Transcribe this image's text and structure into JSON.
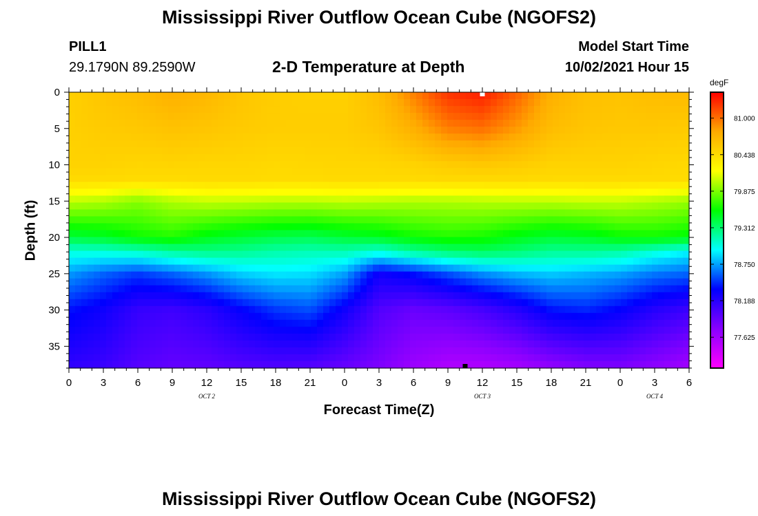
{
  "header": {
    "title": "Mississippi River Outflow Ocean Cube (NGOFS2)",
    "station": "PILL1",
    "coords": "29.1790N  89.2590W",
    "subtitle": "2-D Temperature at Depth",
    "model_start_label": "Model Start Time",
    "model_start_time": "10/02/2021 Hour 15"
  },
  "footer": {
    "title": "Mississippi River Outflow Ocean Cube (NGOFS2)"
  },
  "chart_data": {
    "type": "heatmap",
    "title": "2-D Temperature at Depth",
    "xlabel": "Forecast Time(Z)",
    "ylabel": "Depth (ft)",
    "x_hours_since_first_tick": [
      0,
      54
    ],
    "x_tick_labels": [
      "0",
      "3",
      "6",
      "9",
      "12",
      "15",
      "18",
      "21",
      "0",
      "3",
      "6",
      "9",
      "12",
      "15",
      "18",
      "21",
      "0",
      "3",
      "6"
    ],
    "date_labels": [
      {
        "label": "OCT 2",
        "tick_index": 4
      },
      {
        "label": "OCT 3",
        "tick_index": 12
      },
      {
        "label": "OCT 4",
        "tick_index": 17
      }
    ],
    "ylim": [
      0,
      38
    ],
    "y_ticks": [
      0,
      5,
      10,
      15,
      20,
      25,
      30,
      35
    ],
    "y_inverted": true,
    "colorbar": {
      "unit": "degF",
      "range": [
        77.15,
        81.4
      ],
      "ticks": [
        "81.000",
        "80.438",
        "79.875",
        "79.312",
        "78.750",
        "78.188",
        "77.625"
      ],
      "colors": [
        "#ff00ff",
        "#8800ff",
        "#0000ff",
        "#00ffff",
        "#00ff00",
        "#ffff00",
        "#ffaa00",
        "#ff0000"
      ]
    },
    "depth_profile_levels_ft": [
      0,
      5,
      10,
      12,
      15,
      20,
      22,
      25,
      30,
      38
    ],
    "columns": [
      {
        "hour": 0,
        "temps": [
          80.52,
          80.52,
          80.5,
          80.45,
          80.04,
          79.43,
          79.05,
          78.73,
          78.4,
          78.15
        ]
      },
      {
        "hour": 3,
        "temps": [
          80.6,
          80.56,
          80.5,
          80.45,
          80.0,
          79.48,
          79.06,
          78.6,
          78.3,
          78.1
        ]
      },
      {
        "hour": 6,
        "temps": [
          80.66,
          80.58,
          80.48,
          80.44,
          79.9,
          79.6,
          79.1,
          78.5,
          78.13,
          77.98
        ]
      },
      {
        "hour": 9,
        "temps": [
          80.75,
          80.62,
          80.49,
          80.44,
          80.0,
          79.65,
          79.2,
          78.6,
          78.09,
          77.92
        ]
      },
      {
        "hour": 12,
        "temps": [
          80.7,
          80.6,
          80.48,
          80.45,
          80.05,
          79.52,
          79.25,
          78.72,
          78.18,
          77.93
        ]
      },
      {
        "hour": 15,
        "temps": [
          80.6,
          80.56,
          80.48,
          80.45,
          80.04,
          79.45,
          79.23,
          78.86,
          78.35,
          77.98
        ]
      },
      {
        "hour": 18,
        "temps": [
          80.54,
          80.54,
          80.46,
          80.44,
          80.02,
          79.4,
          79.17,
          78.92,
          78.49,
          78.0
        ]
      },
      {
        "hour": 21,
        "temps": [
          80.52,
          80.54,
          80.47,
          80.44,
          80.02,
          79.38,
          79.14,
          78.9,
          78.55,
          77.98
        ]
      },
      {
        "hour": 24,
        "temps": [
          80.52,
          80.54,
          80.48,
          80.45,
          80.04,
          79.45,
          79.15,
          78.75,
          78.3,
          77.9
        ]
      },
      {
        "hour": 27,
        "temps": [
          80.66,
          80.6,
          80.48,
          80.45,
          80.02,
          79.5,
          79.05,
          78.3,
          78.0,
          77.8
        ]
      },
      {
        "hour": 30,
        "temps": [
          80.95,
          80.75,
          80.5,
          80.45,
          80.0,
          79.6,
          79.2,
          78.4,
          77.9,
          77.65
        ]
      },
      {
        "hour": 33,
        "temps": [
          81.22,
          80.95,
          80.55,
          80.46,
          80.0,
          79.65,
          79.3,
          78.55,
          77.95,
          77.55
        ]
      },
      {
        "hour": 36,
        "temps": [
          81.3,
          81.0,
          80.58,
          80.46,
          80.02,
          79.62,
          79.35,
          78.7,
          78.05,
          77.55
        ]
      },
      {
        "hour": 39,
        "temps": [
          81.05,
          80.85,
          80.55,
          80.46,
          80.03,
          79.52,
          79.3,
          78.8,
          78.2,
          77.6
        ]
      },
      {
        "hour": 42,
        "temps": [
          80.75,
          80.66,
          80.5,
          80.45,
          80.03,
          79.45,
          79.22,
          78.85,
          78.4,
          77.7
        ]
      },
      {
        "hour": 45,
        "temps": [
          80.64,
          80.6,
          80.5,
          80.45,
          80.05,
          79.48,
          79.22,
          78.8,
          78.45,
          77.78
        ]
      },
      {
        "hour": 48,
        "temps": [
          80.62,
          80.58,
          80.5,
          80.45,
          80.05,
          79.58,
          79.18,
          78.75,
          78.35,
          77.8
        ]
      },
      {
        "hour": 51,
        "temps": [
          80.66,
          80.58,
          80.48,
          80.45,
          80.0,
          79.6,
          79.05,
          78.65,
          78.2,
          77.72
        ]
      },
      {
        "hour": 54,
        "temps": [
          80.68,
          80.56,
          80.46,
          80.44,
          79.95,
          79.55,
          78.95,
          78.6,
          78.1,
          77.62
        ]
      }
    ],
    "markers": [
      {
        "hour": 36,
        "depth_ft": 0.2,
        "color": "#ffffff"
      },
      {
        "hour": 34.5,
        "depth_ft": 37.9,
        "color": "#000000"
      }
    ]
  }
}
